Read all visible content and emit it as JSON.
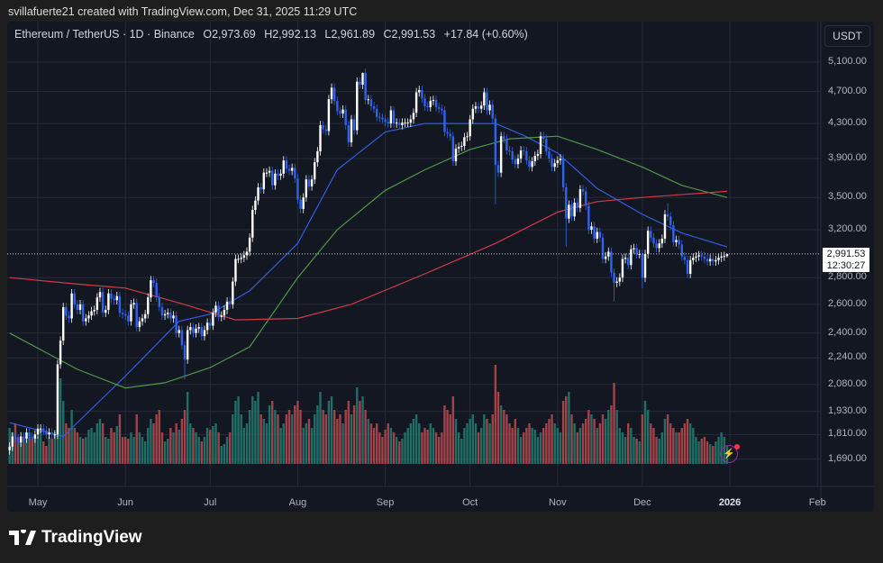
{
  "credit": "svillafuerte21 created with TradingView.com, Dec 31, 2025 11:29 UTC",
  "legend": {
    "symbol": "Ethereum / TetherUS · 1D · Binance",
    "open": "O2,973.69",
    "high": "H2,992.13",
    "low": "L2,961.89",
    "close": "C2,991.53",
    "change": "+17.84 (+0.60%)"
  },
  "currency_button": "USDT",
  "last_price": {
    "price": "2,991.53",
    "countdown": "12:30:27"
  },
  "logo_text": "TradingView",
  "colors": {
    "up": "#ffffff",
    "down": "#2f63f0",
    "vol_up": "#1f6f66",
    "vol_down": "#a2434a",
    "ma_blue": "#2f5fe0",
    "ma_green": "#4f9a45",
    "ma_red": "#d23a48",
    "background": "#131722",
    "grid": "#262b38"
  },
  "chart_data": {
    "type": "candlestick",
    "scale": "log",
    "grid": true,
    "y_ticks": [
      "5,100.00",
      "4,700.00",
      "4,300.00",
      "3,900.00",
      "3,500.00",
      "3,200.00",
      "2,800.00",
      "2,600.00",
      "2,400.00",
      "2,240.00",
      "2,080.00",
      "1,930.00",
      "1,810.00",
      "1,690.00"
    ],
    "y_tick_values": [
      5100,
      4700,
      4300,
      3900,
      3500,
      3200,
      2800,
      2600,
      2400,
      2240,
      2080,
      1930,
      1810,
      1690
    ],
    "x_ticks": [
      {
        "label": "May",
        "date": "2025-05-01"
      },
      {
        "label": "Jun",
        "date": "2025-06-01"
      },
      {
        "label": "Jul",
        "date": "2025-07-01"
      },
      {
        "label": "Aug",
        "date": "2025-08-01"
      },
      {
        "label": "Sep",
        "date": "2025-09-01"
      },
      {
        "label": "Oct",
        "date": "2025-10-01"
      },
      {
        "label": "Nov",
        "date": "2025-11-01"
      },
      {
        "label": "Dec",
        "date": "2025-12-01"
      },
      {
        "label": "2026",
        "date": "2026-01-01",
        "bold": true
      },
      {
        "label": "Feb",
        "date": "2026-02-01"
      }
    ],
    "last_candle": {
      "date": "2025-12-31",
      "open": 2973.69,
      "high": 2992.13,
      "low": 2961.89,
      "close": 2991.53
    },
    "months": [
      {
        "month": "2025-04",
        "first_day": 21,
        "close": [
          1750,
          1800,
          1790,
          1770,
          1800,
          1790,
          1820,
          1800,
          1790,
          1810
        ],
        "volume": [
          40,
          35,
          45,
          30,
          25,
          30,
          35,
          30,
          28,
          32
        ]
      },
      {
        "month": "2025-05",
        "first_day": 1,
        "close": [
          1840,
          1840,
          1830,
          1810,
          1820,
          1810,
          1810,
          2200,
          2350,
          2580,
          2520,
          2500,
          2680,
          2600,
          2560,
          2600,
          2480,
          2500,
          2520,
          2550,
          2560,
          2650,
          2690,
          2540,
          2560,
          2680,
          2640,
          2630,
          2660,
          2540,
          2530
        ],
        "volume": [
          30,
          38,
          25,
          20,
          30,
          28,
          35,
          90,
          95,
          70,
          45,
          40,
          60,
          40,
          35,
          30,
          28,
          30,
          38,
          40,
          35,
          45,
          50,
          45,
          30,
          28,
          40,
          35,
          42,
          55,
          30
        ]
      },
      {
        "month": "2025-06",
        "first_day": 1,
        "close": [
          2520,
          2480,
          2600,
          2610,
          2440,
          2480,
          2500,
          2530,
          2650,
          2780,
          2760,
          2650,
          2580,
          2520,
          2530,
          2540,
          2500,
          2520,
          2400,
          2420,
          2320,
          2230,
          2420,
          2440,
          2400,
          2430,
          2440,
          2380,
          2420,
          2470
        ],
        "volume": [
          30,
          28,
          35,
          30,
          55,
          35,
          30,
          25,
          40,
          50,
          45,
          55,
          60,
          35,
          25,
          28,
          40,
          35,
          45,
          38,
          50,
          60,
          80,
          45,
          40,
          35,
          30,
          25,
          30,
          40
        ]
      },
      {
        "month": "2025-07",
        "first_day": 1,
        "close": [
          2450,
          2540,
          2590,
          2510,
          2520,
          2560,
          2620,
          2600,
          2770,
          2950,
          2950,
          2960,
          2980,
          3010,
          3130,
          3380,
          3470,
          3600,
          3580,
          3750,
          3750,
          3770,
          3620,
          3740,
          3720,
          3740,
          3880,
          3790,
          3770,
          3800,
          3690
        ],
        "volume": [
          38,
          42,
          45,
          35,
          20,
          22,
          30,
          35,
          55,
          70,
          75,
          55,
          40,
          45,
          60,
          75,
          70,
          80,
          55,
          50,
          45,
          65,
          70,
          60,
          55,
          40,
          45,
          55,
          60,
          55,
          65
        ]
      },
      {
        "month": "2025-08",
        "first_day": 1,
        "close": [
          3480,
          3390,
          3500,
          3680,
          3610,
          3680,
          3860,
          3980,
          4280,
          4230,
          4210,
          4600,
          4750,
          4580,
          4450,
          4420,
          4470,
          4280,
          4080,
          4350,
          4220,
          4830,
          4790,
          4950,
          4590,
          4600,
          4510,
          4480,
          4380,
          4370,
          4350
        ],
        "volume": [
          70,
          60,
          40,
          45,
          50,
          40,
          55,
          65,
          80,
          60,
          55,
          70,
          75,
          60,
          50,
          55,
          45,
          60,
          70,
          55,
          65,
          85,
          70,
          75,
          60,
          50,
          45,
          40,
          45,
          35,
          30
        ]
      },
      {
        "month": "2025-09",
        "first_day": 1,
        "close": [
          4320,
          4300,
          4460,
          4300,
          4310,
          4280,
          4310,
          4310,
          4310,
          4350,
          4430,
          4690,
          4720,
          4610,
          4510,
          4500,
          4580,
          4590,
          4500,
          4480,
          4460,
          4200,
          4180,
          4150,
          3870,
          4010,
          4030,
          4040,
          4140,
          4150
        ],
        "volume": [
          38,
          45,
          40,
          35,
          30,
          25,
          28,
          35,
          40,
          45,
          50,
          55,
          45,
          35,
          40,
          38,
          45,
          40,
          35,
          30,
          35,
          65,
          60,
          55,
          75,
          50,
          35,
          28,
          40,
          45
        ]
      },
      {
        "month": "2025-10",
        "first_day": 1,
        "close": [
          4350,
          4480,
          4510,
          4480,
          4520,
          4690,
          4460,
          4530,
          4360,
          3830,
          3750,
          4150,
          4120,
          3990,
          3980,
          3890,
          3840,
          3900,
          3990,
          3980,
          3880,
          3810,
          3870,
          3930,
          3950,
          4150,
          4120,
          3980,
          3900,
          3810,
          3850
        ],
        "volume": [
          50,
          55,
          45,
          35,
          40,
          55,
          50,
          45,
          55,
          110,
          80,
          65,
          60,
          55,
          45,
          40,
          50,
          40,
          30,
          35,
          40,
          45,
          40,
          38,
          30,
          35,
          40,
          45,
          50,
          55,
          45
        ]
      },
      {
        "month": "2025-11",
        "first_day": 1,
        "close": [
          3880,
          3900,
          3600,
          3300,
          3430,
          3320,
          3450,
          3400,
          3580,
          3560,
          3420,
          3200,
          3230,
          3120,
          3180,
          3130,
          2950,
          2970,
          3010,
          2840,
          2760,
          2770,
          2800,
          2950,
          2960,
          2900,
          3030,
          3040,
          2990,
          2990
        ],
        "volume": [
          40,
          35,
          70,
          75,
          80,
          55,
          45,
          35,
          40,
          45,
          50,
          60,
          55,
          50,
          40,
          45,
          55,
          50,
          60,
          65,
          90,
          60,
          40,
          35,
          30,
          45,
          40,
          30,
          28,
          25
        ]
      },
      {
        "month": "2025-12",
        "first_day": 1,
        "close": [
          2800,
          2990,
          3190,
          3130,
          3080,
          3040,
          3080,
          3120,
          3340,
          3320,
          3240,
          3090,
          3110,
          3070,
          2970,
          2940,
          2830,
          2940,
          2960,
          2970,
          2980,
          2970,
          2950,
          2930,
          2950,
          2930,
          2940,
          2960,
          2970,
          2973.69,
          2991.53
        ],
        "volume": [
          55,
          70,
          60,
          45,
          40,
          30,
          28,
          35,
          50,
          55,
          45,
          40,
          35,
          35,
          40,
          45,
          50,
          45,
          40,
          30,
          25,
          28,
          30,
          25,
          22,
          20,
          25,
          30,
          35,
          30,
          20
        ]
      }
    ],
    "notable_wicks": [
      {
        "date": "2025-06-22",
        "low": 2110
      },
      {
        "date": "2025-08-24",
        "high": 4955
      },
      {
        "date": "2025-10-10",
        "low": 3435
      },
      {
        "date": "2025-11-04",
        "low": 3050
      },
      {
        "date": "2025-11-21",
        "low": 2620
      },
      {
        "date": "2025-12-01",
        "low": 2720
      },
      {
        "date": "2025-12-10",
        "high": 3440
      }
    ],
    "moving_averages": [
      {
        "color": "ma_blue",
        "points": [
          [
            "2025-04-21",
            1870
          ],
          [
            "2025-05-10",
            1800
          ],
          [
            "2025-06-01",
            2130
          ],
          [
            "2025-06-20",
            2480
          ],
          [
            "2025-07-01",
            2530
          ],
          [
            "2025-07-15",
            2700
          ],
          [
            "2025-08-01",
            3080
          ],
          [
            "2025-08-15",
            3780
          ],
          [
            "2025-09-01",
            4200
          ],
          [
            "2025-09-15",
            4300
          ],
          [
            "2025-10-01",
            4300
          ],
          [
            "2025-10-10",
            4300
          ],
          [
            "2025-10-20",
            4160
          ],
          [
            "2025-11-01",
            3960
          ],
          [
            "2025-11-15",
            3590
          ],
          [
            "2025-12-01",
            3340
          ],
          [
            "2025-12-15",
            3170
          ],
          [
            "2025-12-31",
            3050
          ]
        ]
      },
      {
        "color": "ma_green",
        "points": [
          [
            "2025-04-21",
            2400
          ],
          [
            "2025-05-15",
            2170
          ],
          [
            "2025-06-01",
            2060
          ],
          [
            "2025-06-15",
            2090
          ],
          [
            "2025-07-01",
            2180
          ],
          [
            "2025-07-15",
            2310
          ],
          [
            "2025-08-01",
            2800
          ],
          [
            "2025-08-15",
            3200
          ],
          [
            "2025-09-01",
            3570
          ],
          [
            "2025-09-15",
            3780
          ],
          [
            "2025-10-01",
            4000
          ],
          [
            "2025-10-15",
            4120
          ],
          [
            "2025-11-01",
            4150
          ],
          [
            "2025-11-15",
            4000
          ],
          [
            "2025-12-01",
            3810
          ],
          [
            "2025-12-15",
            3620
          ],
          [
            "2025-12-31",
            3500
          ]
        ]
      },
      {
        "color": "ma_red",
        "points": [
          [
            "2025-04-21",
            2800
          ],
          [
            "2025-05-15",
            2750
          ],
          [
            "2025-06-01",
            2720
          ],
          [
            "2025-06-20",
            2610
          ],
          [
            "2025-07-10",
            2490
          ],
          [
            "2025-08-01",
            2500
          ],
          [
            "2025-08-20",
            2600
          ],
          [
            "2025-09-15",
            2830
          ],
          [
            "2025-10-10",
            3080
          ],
          [
            "2025-11-01",
            3360
          ],
          [
            "2025-11-15",
            3460
          ],
          [
            "2025-12-01",
            3500
          ],
          [
            "2025-12-31",
            3560
          ]
        ]
      }
    ]
  }
}
